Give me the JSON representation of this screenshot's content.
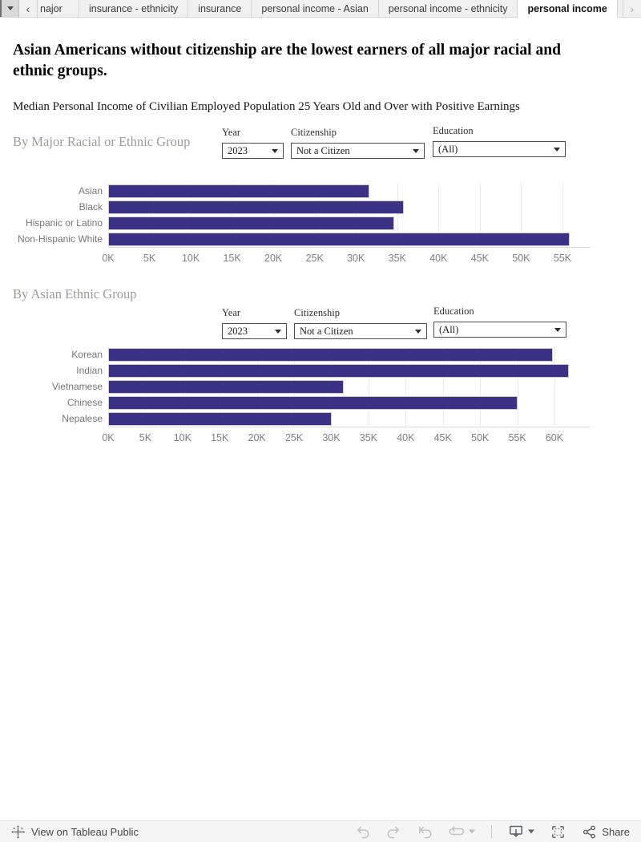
{
  "tab_bar": {
    "tabs": [
      {
        "label": "najor",
        "active": false
      },
      {
        "label": "insurance - ethnicity",
        "active": false
      },
      {
        "label": "insurance",
        "active": false
      },
      {
        "label": "personal income - Asian",
        "active": false
      },
      {
        "label": "personal income - ethnicity",
        "active": false
      },
      {
        "label": "personal income",
        "active": true
      }
    ],
    "icons": {
      "scroll_left": "‹",
      "scroll_right": "›"
    }
  },
  "header": {
    "title": "Asian Americans without citizenship are the lowest earners of all major racial and ethnic groups.",
    "subtitle": "Median Personal Income of Civilian Employed Population 25 Years Old and Over with Positive Earnings"
  },
  "sections": [
    {
      "heading": "By Major Racial or Ethnic Group",
      "filters": [
        {
          "label": "Year",
          "value": "2023"
        },
        {
          "label": "Citizenship",
          "value": "Not a Citizen"
        },
        {
          "label": "Education",
          "value": "(All)"
        }
      ]
    },
    {
      "heading": "By Asian Ethnic Group",
      "filters": [
        {
          "label": "Year",
          "value": "2023"
        },
        {
          "label": "Citizenship",
          "value": "Not a Citizen"
        },
        {
          "label": "Education",
          "value": "(All)"
        }
      ]
    }
  ],
  "chart_data": [
    {
      "type": "bar",
      "orientation": "horizontal",
      "section": "By Major Racial or Ethnic Group",
      "categories": [
        "Asian",
        "Black",
        "Hispanic or Latino",
        "Non-Hispanic White"
      ],
      "values": [
        31400,
        35600,
        34400,
        55700
      ],
      "tick_labels": [
        "0K",
        "5K",
        "10K",
        "15K",
        "20K",
        "25K",
        "30K",
        "35K",
        "40K",
        "45K",
        "50K",
        "55K"
      ],
      "tick_values": [
        0,
        5000,
        10000,
        15000,
        20000,
        25000,
        30000,
        35000,
        40000,
        45000,
        50000,
        55000
      ],
      "axis_max": 58400,
      "grid": true,
      "bar_color": "#3b3286"
    },
    {
      "type": "bar",
      "orientation": "horizontal",
      "section": "By Asian Ethnic Group",
      "categories": [
        "Korean",
        "Indian",
        "Vietnamese",
        "Chinese",
        "Nepalese"
      ],
      "values": [
        59600,
        61700,
        31500,
        54800,
        29800
      ],
      "tick_labels": [
        "0K",
        "5K",
        "10K",
        "15K",
        "20K",
        "25K",
        "30K",
        "35K",
        "40K",
        "45K",
        "50K",
        "55K",
        "60K"
      ],
      "tick_values": [
        0,
        5000,
        10000,
        15000,
        20000,
        25000,
        30000,
        35000,
        40000,
        45000,
        50000,
        55000,
        60000
      ],
      "axis_max": 64850,
      "grid": true,
      "bar_color": "#3b3286"
    }
  ],
  "toolbar": {
    "view_on_label": "View on Tableau Public",
    "share_label": "Share"
  },
  "colors": {
    "bar": "#3b3286",
    "section_heading": "#9c9c96",
    "tabbar_bg": "#f1f1f1"
  }
}
